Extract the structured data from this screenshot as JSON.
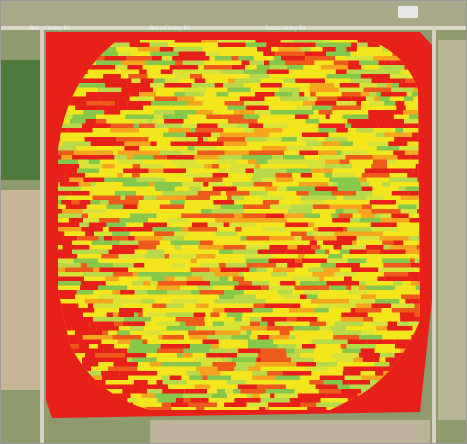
{
  "map": {
    "road_labels": [
      "Round Valley Rd",
      "Round Valley Rd",
      "Round Valley Rd"
    ]
  }
}
